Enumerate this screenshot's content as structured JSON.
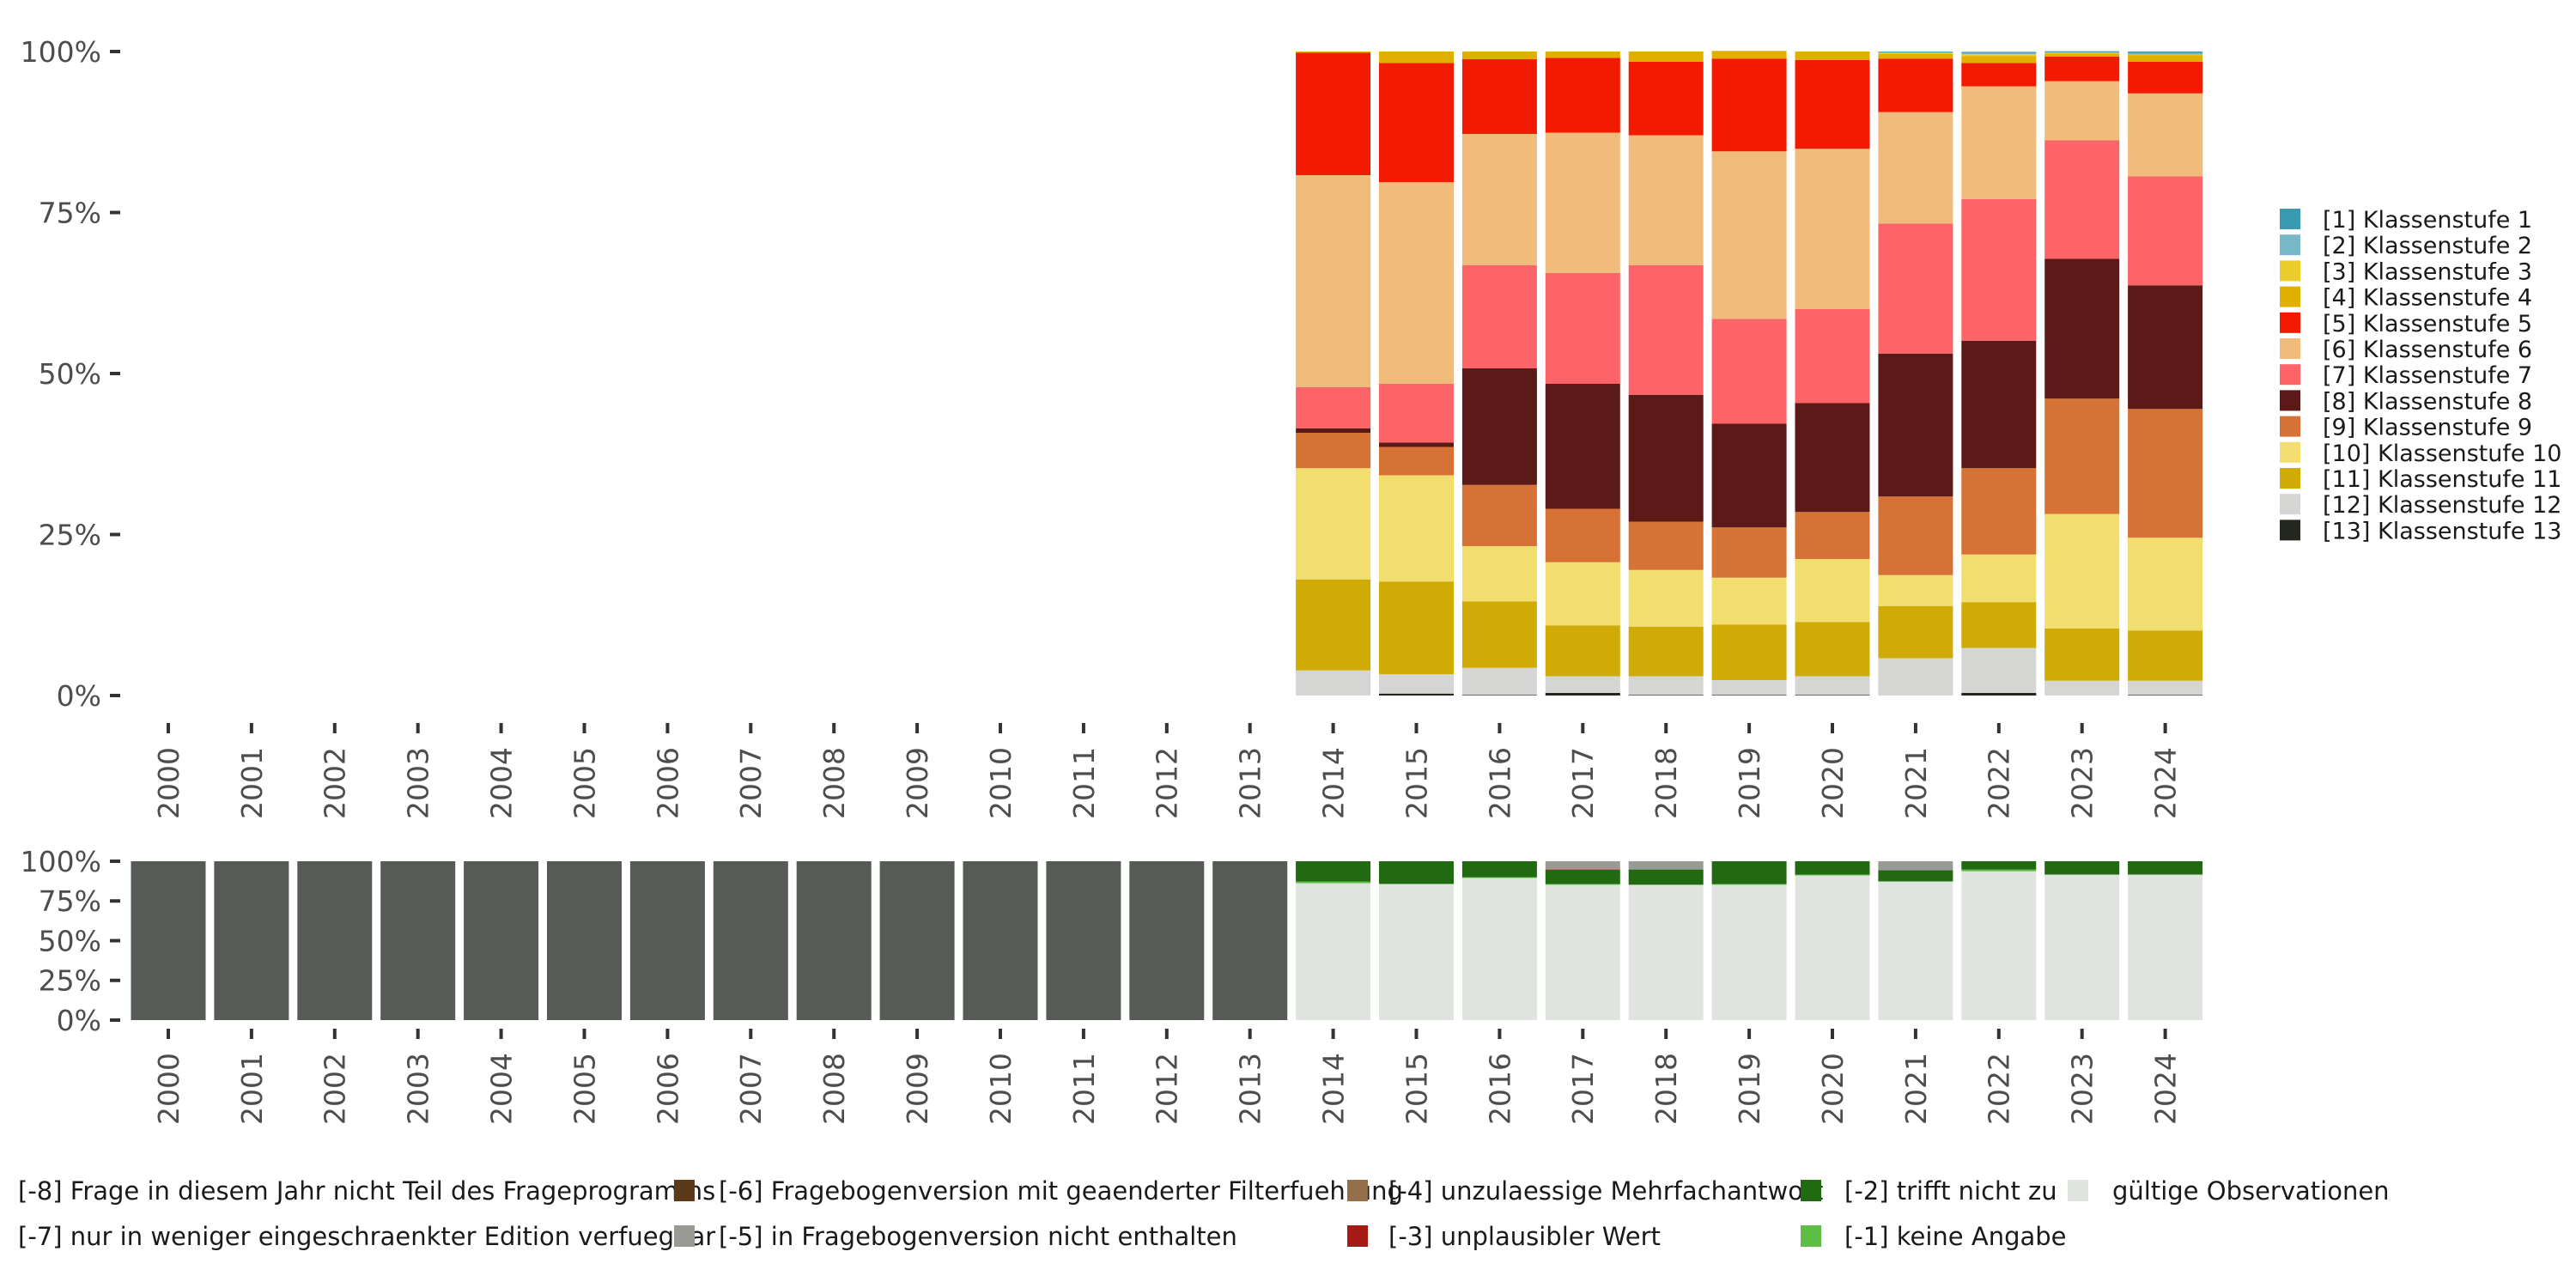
{
  "chart_data": [
    {
      "type": "bar",
      "stacked": true,
      "normalized": true,
      "title": "",
      "xlabel": "",
      "ylabel": "",
      "ylim": [
        0,
        100
      ],
      "y_ticks": [
        "0%",
        "25%",
        "50%",
        "75%",
        "100%"
      ],
      "grid": false,
      "legend_position": "right",
      "categories": [
        "2000",
        "2001",
        "2002",
        "2003",
        "2004",
        "2005",
        "2006",
        "2007",
        "2008",
        "2009",
        "2010",
        "2011",
        "2012",
        "2013",
        "2014",
        "2015",
        "2016",
        "2017",
        "2018",
        "2019",
        "2020",
        "2021",
        "2022",
        "2023",
        "2024"
      ],
      "series": [
        {
          "name": "[1] Klassenstufe 1",
          "color": "#3A9AB2",
          "values": [
            0,
            0,
            0,
            0,
            0,
            0,
            0,
            0,
            0,
            0,
            0,
            0,
            0,
            0,
            0,
            0,
            0,
            0,
            0,
            0,
            0,
            0.1,
            0.15,
            0.15,
            0.2
          ]
        },
        {
          "name": "[2] Klassenstufe 2",
          "color": "#78B7C5",
          "values": [
            0,
            0,
            0,
            0,
            0,
            0,
            0,
            0,
            0,
            0,
            0,
            0,
            0,
            0,
            0,
            0,
            0,
            0,
            0,
            0,
            0,
            0.1,
            0.2,
            0.1,
            0.3
          ]
        },
        {
          "name": "[3] Klassenstufe 3",
          "color": "#EBCC2A",
          "values": [
            0,
            0,
            0,
            0,
            0,
            0,
            0,
            0,
            0,
            0,
            0,
            0,
            0,
            0,
            0,
            0,
            0,
            0,
            0,
            0,
            0,
            0.2,
            0.3,
            0.1,
            0.1
          ]
        },
        {
          "name": "[4] Klassenstufe 4",
          "color": "#E1AF00",
          "values": [
            0,
            0,
            0,
            0,
            0,
            0,
            0,
            0,
            0,
            0,
            0,
            0,
            0,
            0,
            0.2,
            1.8,
            1.2,
            1.0,
            1.6,
            1.2,
            1.3,
            0.7,
            1.1,
            0.5,
            1.0
          ]
        },
        {
          "name": "[5] Klassenstufe 5",
          "color": "#F21A00",
          "values": [
            0,
            0,
            0,
            0,
            0,
            0,
            0,
            0,
            0,
            0,
            0,
            0,
            0,
            0,
            19.0,
            18.5,
            11.6,
            11.6,
            11.4,
            14.4,
            13.8,
            8.3,
            3.6,
            3.8,
            4.9
          ]
        },
        {
          "name": "[6] Klassenstufe 6",
          "color": "#F1BB7B",
          "values": [
            0,
            0,
            0,
            0,
            0,
            0,
            0,
            0,
            0,
            0,
            0,
            0,
            0,
            0,
            32.9,
            31.3,
            20.4,
            21.8,
            20.2,
            26.0,
            24.9,
            17.3,
            17.5,
            9.2,
            12.9
          ]
        },
        {
          "name": "[7] Klassenstufe 7",
          "color": "#FD6467",
          "values": [
            0,
            0,
            0,
            0,
            0,
            0,
            0,
            0,
            0,
            0,
            0,
            0,
            0,
            0,
            6.4,
            9.1,
            16.0,
            17.2,
            20.1,
            16.3,
            14.6,
            20.2,
            22.0,
            18.4,
            16.9
          ]
        },
        {
          "name": "[8] Klassenstufe 8",
          "color": "#5B1A18",
          "values": [
            0,
            0,
            0,
            0,
            0,
            0,
            0,
            0,
            0,
            0,
            0,
            0,
            0,
            0,
            0.7,
            0.7,
            18.1,
            19.4,
            19.7,
            16.1,
            16.9,
            22.2,
            19.8,
            21.7,
            19.2
          ]
        },
        {
          "name": "[9] Klassenstufe 9",
          "color": "#D67236",
          "values": [
            0,
            0,
            0,
            0,
            0,
            0,
            0,
            0,
            0,
            0,
            0,
            0,
            0,
            0,
            5.5,
            4.4,
            9.5,
            8.3,
            7.5,
            7.8,
            7.3,
            12.2,
            13.4,
            17.9,
            20.0
          ]
        },
        {
          "name": "[10] Klassenstufe 10",
          "color": "#F2DE6E",
          "values": [
            0,
            0,
            0,
            0,
            0,
            0,
            0,
            0,
            0,
            0,
            0,
            0,
            0,
            0,
            17.3,
            16.5,
            8.6,
            9.8,
            8.8,
            7.3,
            9.8,
            4.8,
            7.4,
            17.8,
            14.4
          ]
        },
        {
          "name": "[11] Klassenstufe 11",
          "color": "#D0AB05",
          "values": [
            0,
            0,
            0,
            0,
            0,
            0,
            0,
            0,
            0,
            0,
            0,
            0,
            0,
            0,
            14.1,
            14.4,
            10.3,
            7.9,
            7.7,
            8.6,
            8.4,
            8.1,
            7.1,
            8.1,
            7.8
          ]
        },
        {
          "name": "[12] Klassenstufe 12",
          "color": "#D5D5D3",
          "values": [
            0,
            0,
            0,
            0,
            0,
            0,
            0,
            0,
            0,
            0,
            0,
            0,
            0,
            0,
            3.9,
            3.0,
            4.2,
            2.6,
            2.9,
            2.3,
            2.9,
            5.8,
            7.0,
            2.3,
            2.2
          ]
        },
        {
          "name": "[13] Klassenstufe 13",
          "color": "#23271E",
          "values": [
            0,
            0,
            0,
            0,
            0,
            0,
            0,
            0,
            0,
            0,
            0,
            0,
            0,
            0,
            0,
            0.3,
            0.1,
            0.4,
            0.1,
            0.1,
            0.1,
            0,
            0.4,
            0,
            0.1
          ]
        }
      ]
    },
    {
      "type": "bar",
      "stacked": true,
      "normalized": true,
      "title": "",
      "xlabel": "",
      "ylabel": "",
      "ylim": [
        0,
        100
      ],
      "y_ticks": [
        "0%",
        "25%",
        "50%",
        "75%",
        "100%"
      ],
      "grid": false,
      "legend_position": "bottom",
      "categories": [
        "2000",
        "2001",
        "2002",
        "2003",
        "2004",
        "2005",
        "2006",
        "2007",
        "2008",
        "2009",
        "2010",
        "2011",
        "2012",
        "2013",
        "2014",
        "2015",
        "2016",
        "2017",
        "2018",
        "2019",
        "2020",
        "2021",
        "2022",
        "2023",
        "2024"
      ],
      "series": [
        {
          "name": "[-8] Frage in diesem Jahr nicht Teil des Frageprogramms",
          "color": "#565C55",
          "values": [
            100,
            100,
            100,
            100,
            100,
            100,
            100,
            100,
            100,
            100,
            100,
            100,
            100,
            100,
            0,
            0,
            0,
            0,
            0,
            0,
            0,
            0,
            0,
            0,
            0
          ]
        },
        {
          "name": "[-7] nur in weniger eingeschraenkter Edition verfuegbar",
          "color": "#B0B2AC",
          "values": [
            0,
            0,
            0,
            0,
            0,
            0,
            0,
            0,
            0,
            0,
            0,
            0,
            0,
            0,
            0,
            0,
            0,
            0,
            0,
            0,
            0,
            0,
            0,
            0,
            0
          ]
        },
        {
          "name": "[-6] Fragebogenversion mit geaenderter Filterfuehrung",
          "color": "#5B3A1A",
          "values": [
            0,
            0,
            0,
            0,
            0,
            0,
            0,
            0,
            0,
            0,
            0,
            0,
            0,
            0,
            0,
            0,
            0,
            0,
            0,
            0,
            0,
            0,
            0,
            0,
            0
          ]
        },
        {
          "name": "[-5] in Fragebogenversion nicht enthalten",
          "color": "#989B94",
          "values": [
            0,
            0,
            0,
            0,
            0,
            0,
            0,
            0,
            0,
            0,
            0,
            0,
            0,
            0,
            0,
            0,
            0,
            5.2,
            5.2,
            0,
            0,
            5.7,
            0,
            0,
            0
          ]
        },
        {
          "name": "[-4] unzulaessige Mehrfachantwort",
          "color": "#946F4A",
          "values": [
            0,
            0,
            0,
            0,
            0,
            0,
            0,
            0,
            0,
            0,
            0,
            0,
            0,
            0,
            0,
            0,
            0,
            0,
            0,
            0,
            0,
            0,
            0,
            0,
            0
          ]
        },
        {
          "name": "[-3] unplausibler Wert",
          "color": "#A51A15",
          "values": [
            0,
            0,
            0,
            0,
            0,
            0,
            0,
            0,
            0,
            0,
            0,
            0,
            0,
            0,
            0,
            0,
            0,
            0.5,
            0,
            0,
            0,
            0,
            0,
            0,
            0
          ]
        },
        {
          "name": "[-2] trifft nicht zu",
          "color": "#226A12",
          "values": [
            0,
            0,
            0,
            0,
            0,
            0,
            0,
            0,
            0,
            0,
            0,
            0,
            0,
            0,
            12.7,
            14.3,
            10.0,
            8.6,
            9.6,
            14.3,
            8.4,
            7.0,
            5.2,
            8.4,
            8.4
          ]
        },
        {
          "name": "[-1] keine Angabe",
          "color": "#5DBE45",
          "values": [
            0,
            0,
            0,
            0,
            0,
            0,
            0,
            0,
            0,
            0,
            0,
            0,
            0,
            0,
            1.1,
            0,
            0.5,
            0.5,
            0,
            0.5,
            0.5,
            0,
            1.1,
            0,
            0
          ]
        },
        {
          "name": "gültige Observationen",
          "color": "#E0E4DE",
          "values": [
            0,
            0,
            0,
            0,
            0,
            0,
            0,
            0,
            0,
            0,
            0,
            0,
            0,
            0,
            86.2,
            85.7,
            89.5,
            85.2,
            85.2,
            85.2,
            91.1,
            87.3,
            93.7,
            91.6,
            91.6
          ]
        }
      ]
    }
  ],
  "top_legend": {
    "items": [
      {
        "label": "[1] Klassenstufe 1",
        "color": "#3A9AB2"
      },
      {
        "label": "[2] Klassenstufe 2",
        "color": "#78B7C5"
      },
      {
        "label": "[3] Klassenstufe 3",
        "color": "#EBCC2A"
      },
      {
        "label": "[4] Klassenstufe 4",
        "color": "#E1AF00"
      },
      {
        "label": "[5] Klassenstufe 5",
        "color": "#F21A00"
      },
      {
        "label": "[6] Klassenstufe 6",
        "color": "#F1BB7B"
      },
      {
        "label": "[7] Klassenstufe 7",
        "color": "#FD6467"
      },
      {
        "label": "[8] Klassenstufe 8",
        "color": "#5B1A18"
      },
      {
        "label": "[9] Klassenstufe 9",
        "color": "#D67236"
      },
      {
        "label": "[10] Klassenstufe 10",
        "color": "#F2DE6E"
      },
      {
        "label": "[11] Klassenstufe 11",
        "color": "#D0AB05"
      },
      {
        "label": "[12] Klassenstufe 12",
        "color": "#D5D5D3"
      },
      {
        "label": "[13] Klassenstufe 13",
        "color": "#23271E"
      }
    ]
  },
  "bottom_legend": {
    "rows": [
      [
        {
          "label": "[-8] Frage in diesem Jahr nicht Teil des Frageprogramms",
          "color": "#565C55"
        },
        {
          "label": "[-6] Fragebogenversion mit geaenderter Filterfuehrung",
          "color": "#5B3A1A"
        },
        {
          "label": "[-4] unzulaessige Mehrfachantwort",
          "color": "#946F4A"
        },
        {
          "label": "[-2] trifft nicht zu",
          "color": "#226A12"
        },
        {
          "label": "gültige Observationen",
          "color": "#E0E4DE"
        }
      ],
      [
        {
          "label": "[-7] nur in weniger eingeschraenkter Edition verfuegbar",
          "color": "#B0B2AC"
        },
        {
          "label": "[-5] in Fragebogenversion nicht enthalten",
          "color": "#989B94"
        },
        {
          "label": "[-3] unplausibler Wert",
          "color": "#A51A15"
        },
        {
          "label": "[-1] keine Angabe",
          "color": "#5DBE45"
        }
      ]
    ]
  }
}
